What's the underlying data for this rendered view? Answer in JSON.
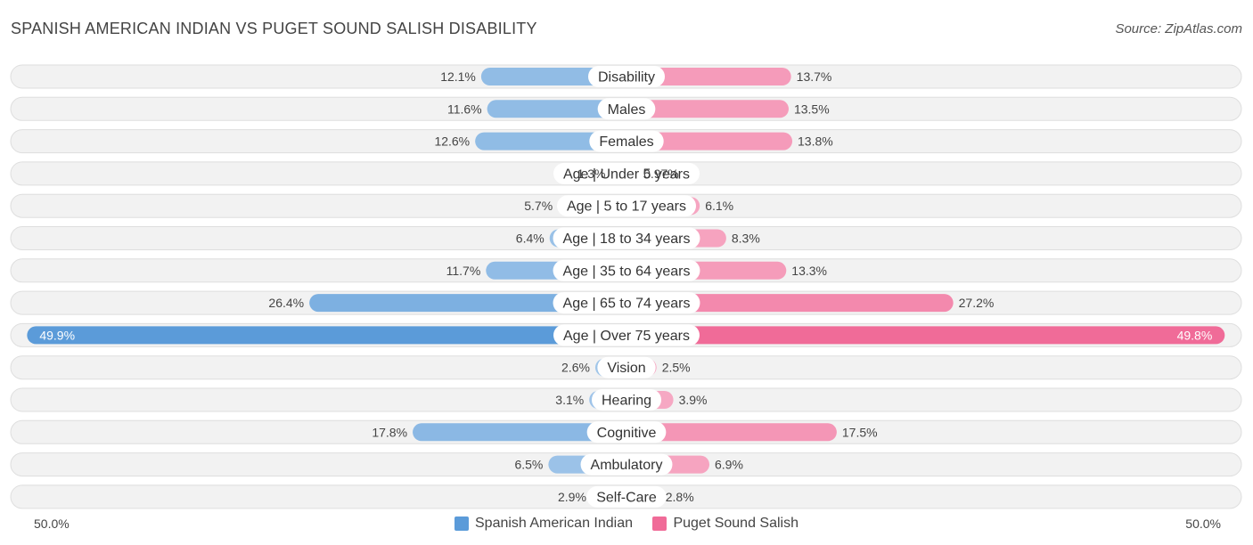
{
  "header": {
    "title": "SPANISH AMERICAN INDIAN VS PUGET SOUND SALISH DISABILITY",
    "source": "Source: ZipAtlas.com"
  },
  "axis": {
    "left_label": "50.0%",
    "right_label": "50.0%"
  },
  "legend": {
    "left": {
      "label": "Spanish American Indian",
      "color": "#5b9bd9"
    },
    "right": {
      "label": "Puget Sound Salish",
      "color": "#f06b98"
    }
  },
  "chart_data": {
    "type": "bar",
    "orientation": "horizontal-diverging",
    "title": "SPANISH AMERICAN INDIAN VS PUGET SOUND SALISH DISABILITY",
    "xlim": [
      -50,
      50
    ],
    "categories": [
      "Disability",
      "Males",
      "Females",
      "Age | Under 5 years",
      "Age | 5 to 17 years",
      "Age | 18 to 34 years",
      "Age | 35 to 64 years",
      "Age | 65 to 74 years",
      "Age | Over 75 years",
      "Vision",
      "Hearing",
      "Cognitive",
      "Ambulatory",
      "Self-Care"
    ],
    "series": [
      {
        "name": "Spanish American Indian",
        "values": [
          12.1,
          11.6,
          12.6,
          1.3,
          5.7,
          6.4,
          11.7,
          26.4,
          49.9,
          2.6,
          3.1,
          17.8,
          6.5,
          2.9
        ],
        "labels": [
          "12.1%",
          "11.6%",
          "12.6%",
          "1.3%",
          "5.7%",
          "6.4%",
          "11.7%",
          "26.4%",
          "49.9%",
          "2.6%",
          "3.1%",
          "17.8%",
          "6.5%",
          "2.9%"
        ]
      },
      {
        "name": "Puget Sound Salish",
        "values": [
          13.7,
          13.5,
          13.8,
          0.97,
          6.1,
          8.3,
          13.3,
          27.2,
          49.8,
          2.5,
          3.9,
          17.5,
          6.9,
          2.8
        ],
        "labels": [
          "13.7%",
          "13.5%",
          "13.8%",
          "0.97%",
          "6.1%",
          "8.3%",
          "13.3%",
          "27.2%",
          "49.8%",
          "2.5%",
          "3.9%",
          "17.5%",
          "6.9%",
          "2.8%"
        ]
      }
    ],
    "legend_position": "bottom-center"
  }
}
